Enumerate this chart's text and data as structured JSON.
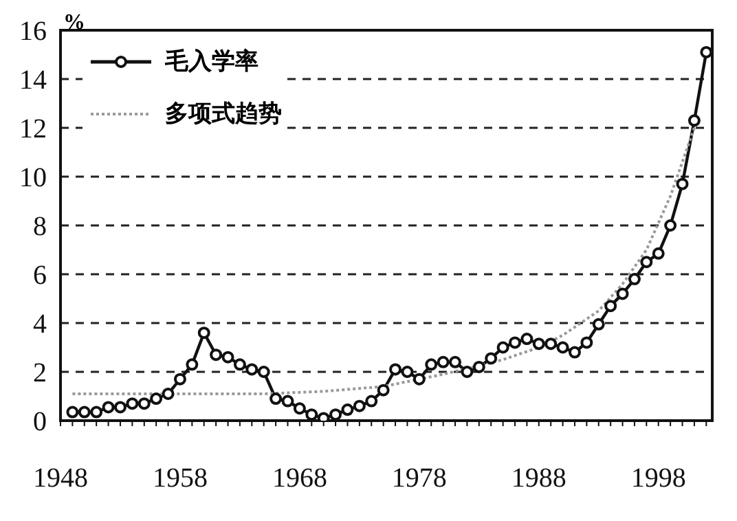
{
  "chart_data": {
    "type": "line",
    "ylabel": "%",
    "xlim": [
      1948,
      2002.5
    ],
    "xticks": [
      1948,
      {
        "value": 1949,
        "label": null
      },
      {
        "value": 1950,
        "label": null
      },
      {
        "value": 1951,
        "label": null
      },
      {
        "value": 1952,
        "label": null
      },
      {
        "value": 1953,
        "label": null
      },
      {
        "value": 1954,
        "label": null
      },
      {
        "value": 1955,
        "label": null
      },
      {
        "value": 1956,
        "label": null
      },
      {
        "value": 1957,
        "label": null
      },
      1958,
      {
        "value": 1959,
        "label": null
      },
      {
        "value": 1960,
        "label": null
      },
      {
        "value": 1961,
        "label": null
      },
      {
        "value": 1962,
        "label": null
      },
      {
        "value": 1963,
        "label": null
      },
      {
        "value": 1964,
        "label": null
      },
      {
        "value": 1965,
        "label": null
      },
      {
        "value": 1966,
        "label": null
      },
      {
        "value": 1967,
        "label": null
      },
      1968,
      {
        "value": 1969,
        "label": null
      },
      {
        "value": 1970,
        "label": null
      },
      {
        "value": 1971,
        "label": null
      },
      {
        "value": 1972,
        "label": null
      },
      {
        "value": 1973,
        "label": null
      },
      {
        "value": 1974,
        "label": null
      },
      {
        "value": 1975,
        "label": null
      },
      {
        "value": 1976,
        "label": null
      },
      {
        "value": 1977,
        "label": null
      },
      1978,
      {
        "value": 1979,
        "label": null
      },
      {
        "value": 1980,
        "label": null
      },
      {
        "value": 1981,
        "label": null
      },
      {
        "value": 1982,
        "label": null
      },
      {
        "value": 1983,
        "label": null
      },
      {
        "value": 1984,
        "label": null
      },
      {
        "value": 1985,
        "label": null
      },
      {
        "value": 1986,
        "label": null
      },
      {
        "value": 1987,
        "label": null
      },
      1988,
      {
        "value": 1989,
        "label": null
      },
      {
        "value": 1990,
        "label": null
      },
      {
        "value": 1991,
        "label": null
      },
      {
        "value": 1992,
        "label": null
      },
      {
        "value": 1993,
        "label": null
      },
      {
        "value": 1994,
        "label": null
      },
      {
        "value": 1995,
        "label": null
      },
      {
        "value": 1996,
        "label": null
      },
      {
        "value": 1997,
        "label": null
      },
      1998,
      {
        "value": 1999,
        "label": null
      },
      {
        "value": 2000,
        "label": null
      },
      {
        "value": 2001,
        "label": null
      },
      {
        "value": 2002,
        "label": null
      }
    ],
    "ylim": [
      0,
      16
    ],
    "yticks": [
      0,
      2,
      4,
      6,
      8,
      10,
      12,
      14,
      16
    ],
    "grid": "y",
    "legend": "top left",
    "series": [
      {
        "name": "毛入学率",
        "color": "#111111",
        "marker": "circle",
        "line_style": "solid",
        "x": [
          1949,
          1950,
          1951,
          1952,
          1953,
          1954,
          1955,
          1956,
          1957,
          1958,
          1959,
          1960,
          1961,
          1962,
          1963,
          1964,
          1965,
          1966,
          1967,
          1968,
          1969,
          1970,
          1971,
          1972,
          1973,
          1974,
          1975,
          1976,
          1977,
          1978,
          1979,
          1980,
          1981,
          1982,
          1983,
          1984,
          1985,
          1986,
          1987,
          1988,
          1989,
          1990,
          1991,
          1992,
          1993,
          1994,
          1995,
          1996,
          1997,
          1998,
          1999,
          2000,
          2001,
          2002
        ],
        "values": [
          0.35,
          0.35,
          0.35,
          0.55,
          0.55,
          0.7,
          0.7,
          0.9,
          1.1,
          1.7,
          2.3,
          3.6,
          2.7,
          2.6,
          2.3,
          2.1,
          2.0,
          0.9,
          0.8,
          0.5,
          0.25,
          0.1,
          0.25,
          0.45,
          0.6,
          0.8,
          1.25,
          2.1,
          2.0,
          1.7,
          2.3,
          2.4,
          2.4,
          2.0,
          2.2,
          2.55,
          3.0,
          3.2,
          3.35,
          3.15,
          3.15,
          3.0,
          2.8,
          3.2,
          3.95,
          4.7,
          5.2,
          5.8,
          6.5,
          6.85,
          8.0,
          9.7,
          12.3,
          15.1
        ]
      },
      {
        "name": "多项式趋势",
        "color": "#999999",
        "marker": "none",
        "line_style": "dotted",
        "x": [
          1949,
          1955,
          1960,
          1965,
          1970,
          1975,
          1980,
          1985,
          1988,
          1990,
          1993,
          1995,
          1997,
          1999,
          2001
        ],
        "values": [
          1.1,
          1.1,
          1.1,
          1.1,
          1.2,
          1.4,
          1.9,
          2.5,
          3.0,
          3.5,
          4.5,
          5.6,
          7.0,
          9.2,
          12.0
        ]
      }
    ]
  }
}
